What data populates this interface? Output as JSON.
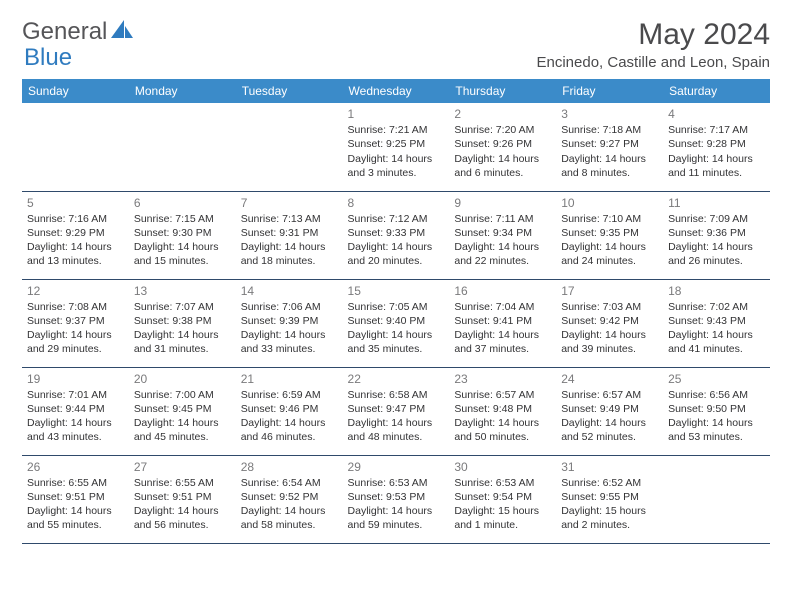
{
  "brand": {
    "part1": "General",
    "part2": "Blue"
  },
  "title": "May 2024",
  "location": "Encinedo, Castille and Leon, Spain",
  "colors": {
    "header_bg": "#3b8bc9",
    "header_text": "#ffffff",
    "rule": "#2f4a6b",
    "brand_gray": "#555558",
    "brand_blue": "#2f7bbf",
    "body_text": "#333335",
    "daynum": "#7a7a7c",
    "page_bg": "#ffffff"
  },
  "weekdays": [
    "Sunday",
    "Monday",
    "Tuesday",
    "Wednesday",
    "Thursday",
    "Friday",
    "Saturday"
  ],
  "weeks": [
    [
      null,
      null,
      null,
      {
        "n": "1",
        "sr": "7:21 AM",
        "ss": "9:25 PM",
        "dl": "Daylight: 14 hours and 3 minutes."
      },
      {
        "n": "2",
        "sr": "7:20 AM",
        "ss": "9:26 PM",
        "dl": "Daylight: 14 hours and 6 minutes."
      },
      {
        "n": "3",
        "sr": "7:18 AM",
        "ss": "9:27 PM",
        "dl": "Daylight: 14 hours and 8 minutes."
      },
      {
        "n": "4",
        "sr": "7:17 AM",
        "ss": "9:28 PM",
        "dl": "Daylight: 14 hours and 11 minutes."
      }
    ],
    [
      {
        "n": "5",
        "sr": "7:16 AM",
        "ss": "9:29 PM",
        "dl": "Daylight: 14 hours and 13 minutes."
      },
      {
        "n": "6",
        "sr": "7:15 AM",
        "ss": "9:30 PM",
        "dl": "Daylight: 14 hours and 15 minutes."
      },
      {
        "n": "7",
        "sr": "7:13 AM",
        "ss": "9:31 PM",
        "dl": "Daylight: 14 hours and 18 minutes."
      },
      {
        "n": "8",
        "sr": "7:12 AM",
        "ss": "9:33 PM",
        "dl": "Daylight: 14 hours and 20 minutes."
      },
      {
        "n": "9",
        "sr": "7:11 AM",
        "ss": "9:34 PM",
        "dl": "Daylight: 14 hours and 22 minutes."
      },
      {
        "n": "10",
        "sr": "7:10 AM",
        "ss": "9:35 PM",
        "dl": "Daylight: 14 hours and 24 minutes."
      },
      {
        "n": "11",
        "sr": "7:09 AM",
        "ss": "9:36 PM",
        "dl": "Daylight: 14 hours and 26 minutes."
      }
    ],
    [
      {
        "n": "12",
        "sr": "7:08 AM",
        "ss": "9:37 PM",
        "dl": "Daylight: 14 hours and 29 minutes."
      },
      {
        "n": "13",
        "sr": "7:07 AM",
        "ss": "9:38 PM",
        "dl": "Daylight: 14 hours and 31 minutes."
      },
      {
        "n": "14",
        "sr": "7:06 AM",
        "ss": "9:39 PM",
        "dl": "Daylight: 14 hours and 33 minutes."
      },
      {
        "n": "15",
        "sr": "7:05 AM",
        "ss": "9:40 PM",
        "dl": "Daylight: 14 hours and 35 minutes."
      },
      {
        "n": "16",
        "sr": "7:04 AM",
        "ss": "9:41 PM",
        "dl": "Daylight: 14 hours and 37 minutes."
      },
      {
        "n": "17",
        "sr": "7:03 AM",
        "ss": "9:42 PM",
        "dl": "Daylight: 14 hours and 39 minutes."
      },
      {
        "n": "18",
        "sr": "7:02 AM",
        "ss": "9:43 PM",
        "dl": "Daylight: 14 hours and 41 minutes."
      }
    ],
    [
      {
        "n": "19",
        "sr": "7:01 AM",
        "ss": "9:44 PM",
        "dl": "Daylight: 14 hours and 43 minutes."
      },
      {
        "n": "20",
        "sr": "7:00 AM",
        "ss": "9:45 PM",
        "dl": "Daylight: 14 hours and 45 minutes."
      },
      {
        "n": "21",
        "sr": "6:59 AM",
        "ss": "9:46 PM",
        "dl": "Daylight: 14 hours and 46 minutes."
      },
      {
        "n": "22",
        "sr": "6:58 AM",
        "ss": "9:47 PM",
        "dl": "Daylight: 14 hours and 48 minutes."
      },
      {
        "n": "23",
        "sr": "6:57 AM",
        "ss": "9:48 PM",
        "dl": "Daylight: 14 hours and 50 minutes."
      },
      {
        "n": "24",
        "sr": "6:57 AM",
        "ss": "9:49 PM",
        "dl": "Daylight: 14 hours and 52 minutes."
      },
      {
        "n": "25",
        "sr": "6:56 AM",
        "ss": "9:50 PM",
        "dl": "Daylight: 14 hours and 53 minutes."
      }
    ],
    [
      {
        "n": "26",
        "sr": "6:55 AM",
        "ss": "9:51 PM",
        "dl": "Daylight: 14 hours and 55 minutes."
      },
      {
        "n": "27",
        "sr": "6:55 AM",
        "ss": "9:51 PM",
        "dl": "Daylight: 14 hours and 56 minutes."
      },
      {
        "n": "28",
        "sr": "6:54 AM",
        "ss": "9:52 PM",
        "dl": "Daylight: 14 hours and 58 minutes."
      },
      {
        "n": "29",
        "sr": "6:53 AM",
        "ss": "9:53 PM",
        "dl": "Daylight: 14 hours and 59 minutes."
      },
      {
        "n": "30",
        "sr": "6:53 AM",
        "ss": "9:54 PM",
        "dl": "Daylight: 15 hours and 1 minute."
      },
      {
        "n": "31",
        "sr": "6:52 AM",
        "ss": "9:55 PM",
        "dl": "Daylight: 15 hours and 2 minutes."
      },
      null
    ]
  ],
  "labels": {
    "sunrise_prefix": "Sunrise: ",
    "sunset_prefix": "Sunset: "
  }
}
